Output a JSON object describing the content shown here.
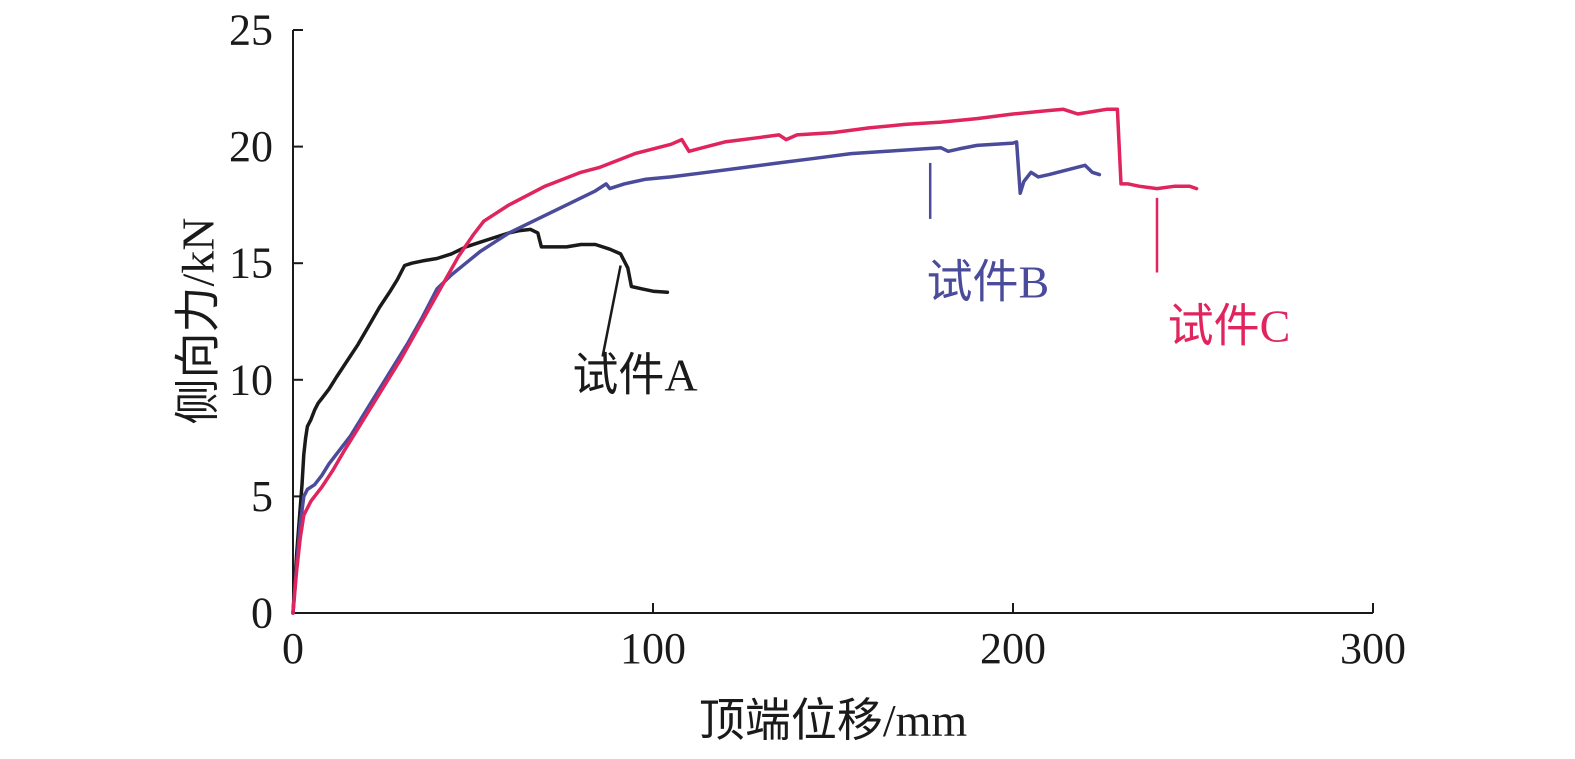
{
  "chart_data": {
    "type": "line",
    "title": "",
    "xlabel": "顶端位移/mm",
    "ylabel": "侧向力/kN",
    "xlim": [
      0,
      300
    ],
    "ylim": [
      0,
      25
    ],
    "x_ticks": [
      0,
      100,
      200,
      300
    ],
    "y_ticks": [
      0,
      5,
      10,
      15,
      20,
      25
    ],
    "x_tick_labels": [
      "0",
      "100",
      "200",
      "300"
    ],
    "y_tick_labels": [
      "0",
      "5",
      "10",
      "15",
      "20",
      "25"
    ],
    "grid": false,
    "legend": "none",
    "series": [
      {
        "name": "试件A",
        "color": "#1a1a1a",
        "points": [
          [
            0,
            0
          ],
          [
            1,
            2.5
          ],
          [
            2,
            4.5
          ],
          [
            2.5,
            5.5
          ],
          [
            3,
            6.8
          ],
          [
            3.5,
            7.5
          ],
          [
            4,
            8.0
          ],
          [
            5,
            8.3
          ],
          [
            6,
            8.7
          ],
          [
            7,
            9.0
          ],
          [
            8,
            9.2
          ],
          [
            10,
            9.6
          ],
          [
            12,
            10.1
          ],
          [
            15,
            10.8
          ],
          [
            18,
            11.5
          ],
          [
            21,
            12.3
          ],
          [
            24,
            13.1
          ],
          [
            27,
            13.8
          ],
          [
            29,
            14.3
          ],
          [
            31,
            14.9
          ],
          [
            33,
            15.0
          ],
          [
            36,
            15.1
          ],
          [
            40,
            15.2
          ],
          [
            44,
            15.4
          ],
          [
            48,
            15.7
          ],
          [
            52,
            15.9
          ],
          [
            56,
            16.1
          ],
          [
            60,
            16.3
          ],
          [
            63,
            16.4
          ],
          [
            66,
            16.45
          ],
          [
            68,
            16.3
          ],
          [
            69,
            15.7
          ],
          [
            72,
            15.7
          ],
          [
            76,
            15.7
          ],
          [
            80,
            15.8
          ],
          [
            84,
            15.8
          ],
          [
            88,
            15.6
          ],
          [
            91,
            15.4
          ],
          [
            93,
            14.8
          ],
          [
            94,
            14.0
          ],
          [
            97,
            13.9
          ],
          [
            100,
            13.8
          ],
          [
            104,
            13.75
          ]
        ]
      },
      {
        "name": "试件B",
        "color": "#4b4b9b",
        "points": [
          [
            0,
            0
          ],
          [
            1,
            2.0
          ],
          [
            2,
            3.8
          ],
          [
            3,
            5.0
          ],
          [
            4,
            5.3
          ],
          [
            6,
            5.5
          ],
          [
            8,
            5.9
          ],
          [
            10,
            6.4
          ],
          [
            13,
            7.0
          ],
          [
            16,
            7.6
          ],
          [
            20,
            8.6
          ],
          [
            24,
            9.6
          ],
          [
            28,
            10.6
          ],
          [
            32,
            11.6
          ],
          [
            36,
            12.7
          ],
          [
            40,
            13.9
          ],
          [
            44,
            14.5
          ],
          [
            48,
            15.0
          ],
          [
            52,
            15.5
          ],
          [
            56,
            15.9
          ],
          [
            60,
            16.3
          ],
          [
            64,
            16.6
          ],
          [
            68,
            16.9
          ],
          [
            72,
            17.2
          ],
          [
            76,
            17.5
          ],
          [
            80,
            17.8
          ],
          [
            84,
            18.1
          ],
          [
            87,
            18.4
          ],
          [
            88,
            18.2
          ],
          [
            92,
            18.4
          ],
          [
            98,
            18.6
          ],
          [
            105,
            18.7
          ],
          [
            115,
            18.9
          ],
          [
            125,
            19.1
          ],
          [
            135,
            19.3
          ],
          [
            145,
            19.5
          ],
          [
            155,
            19.7
          ],
          [
            165,
            19.8
          ],
          [
            175,
            19.9
          ],
          [
            180,
            19.95
          ],
          [
            182,
            19.8
          ],
          [
            185,
            19.9
          ],
          [
            190,
            20.05
          ],
          [
            195,
            20.1
          ],
          [
            200,
            20.15
          ],
          [
            201,
            20.2
          ],
          [
            202,
            18.0
          ],
          [
            203,
            18.5
          ],
          [
            205,
            18.9
          ],
          [
            207,
            18.7
          ],
          [
            210,
            18.8
          ],
          [
            215,
            19.0
          ],
          [
            220,
            19.2
          ],
          [
            222,
            18.9
          ],
          [
            224,
            18.8
          ]
        ]
      },
      {
        "name": "试件C",
        "color": "#e0245e",
        "points": [
          [
            0,
            0
          ],
          [
            1,
            1.8
          ],
          [
            2,
            3.2
          ],
          [
            3,
            4.2
          ],
          [
            5,
            4.8
          ],
          [
            8,
            5.4
          ],
          [
            11,
            6.1
          ],
          [
            14,
            6.9
          ],
          [
            18,
            7.9
          ],
          [
            22,
            8.9
          ],
          [
            26,
            9.9
          ],
          [
            30,
            10.9
          ],
          [
            34,
            12.0
          ],
          [
            38,
            13.1
          ],
          [
            42,
            14.2
          ],
          [
            46,
            15.3
          ],
          [
            50,
            16.2
          ],
          [
            53,
            16.8
          ],
          [
            56,
            17.1
          ],
          [
            60,
            17.5
          ],
          [
            65,
            17.9
          ],
          [
            70,
            18.3
          ],
          [
            75,
            18.6
          ],
          [
            80,
            18.9
          ],
          [
            85,
            19.1
          ],
          [
            90,
            19.4
          ],
          [
            95,
            19.7
          ],
          [
            100,
            19.9
          ],
          [
            105,
            20.1
          ],
          [
            108,
            20.3
          ],
          [
            110,
            19.8
          ],
          [
            115,
            20.0
          ],
          [
            120,
            20.2
          ],
          [
            130,
            20.4
          ],
          [
            135,
            20.5
          ],
          [
            137,
            20.3
          ],
          [
            140,
            20.5
          ],
          [
            150,
            20.6
          ],
          [
            160,
            20.8
          ],
          [
            170,
            20.95
          ],
          [
            180,
            21.05
          ],
          [
            190,
            21.2
          ],
          [
            200,
            21.4
          ],
          [
            210,
            21.55
          ],
          [
            214,
            21.6
          ],
          [
            218,
            21.4
          ],
          [
            222,
            21.5
          ],
          [
            226,
            21.6
          ],
          [
            229,
            21.6
          ],
          [
            230,
            18.4
          ],
          [
            232,
            18.4
          ],
          [
            235,
            18.3
          ],
          [
            240,
            18.2
          ],
          [
            245,
            18.3
          ],
          [
            249,
            18.3
          ],
          [
            251,
            18.2
          ]
        ]
      }
    ],
    "annotations": [
      {
        "text": "试件A",
        "color": "#1a1a1a",
        "x": 95,
        "y": 10.2,
        "leader": [
          [
            86,
            11.0
          ],
          [
            91,
            14.9
          ]
        ]
      },
      {
        "text": "试件B",
        "color": "#4b4b9b",
        "x": 193,
        "y": 14.2,
        "leader": [
          [
            177,
            16.9
          ],
          [
            177,
            19.3
          ]
        ]
      },
      {
        "text": "试件C",
        "color": "#e0245e",
        "x": 260,
        "y": 12.3,
        "leader": [
          [
            240,
            14.6
          ],
          [
            240,
            17.8
          ]
        ]
      }
    ]
  }
}
